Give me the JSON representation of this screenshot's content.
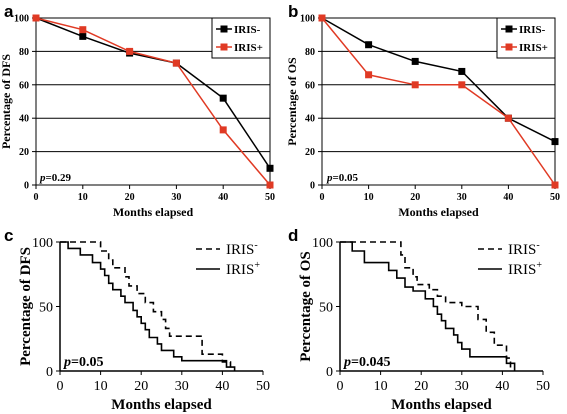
{
  "panel_letters": [
    "a",
    "b",
    "c",
    "d"
  ],
  "colors": {
    "black": "#000000",
    "red": "#e03a24"
  },
  "chart_data": [
    {
      "panel": "a",
      "type": "line",
      "ylabel": "Percentage of DFS",
      "xlabel": "Months elapsed",
      "x": [
        0,
        10,
        20,
        30,
        40,
        50
      ],
      "xlim": [
        0,
        50
      ],
      "ylim": [
        0,
        100
      ],
      "yticks": [
        0,
        20,
        40,
        60,
        80,
        100
      ],
      "grid": true,
      "legend": "top-right",
      "annotation": "p=0.29",
      "series": [
        {
          "name": "IRIS-",
          "color": "#000000",
          "marker": "square",
          "values": [
            100,
            89,
            79,
            73,
            52,
            10
          ]
        },
        {
          "name": "IRIS+",
          "color": "#e03a24",
          "marker": "square",
          "values": [
            100,
            93,
            80,
            73,
            33,
            0
          ]
        }
      ]
    },
    {
      "panel": "b",
      "type": "line",
      "ylabel": "Percentage of OS",
      "xlabel": "Months elapsed",
      "x": [
        0,
        10,
        20,
        30,
        40,
        50
      ],
      "xlim": [
        0,
        50
      ],
      "ylim": [
        0,
        100
      ],
      "yticks": [
        0,
        20,
        40,
        60,
        80,
        100
      ],
      "grid": true,
      "legend": "top-right",
      "annotation": "p=0.05",
      "series": [
        {
          "name": "IRIS-",
          "color": "#000000",
          "marker": "square",
          "values": [
            100,
            84,
            74,
            68,
            40,
            26
          ]
        },
        {
          "name": "IRIS+",
          "color": "#e03a24",
          "marker": "square",
          "values": [
            100,
            66,
            60,
            60,
            40,
            0
          ]
        }
      ]
    },
    {
      "panel": "c",
      "type": "line",
      "step": true,
      "ylabel": "Percentage of DFS",
      "xlabel": "Months elapsed",
      "xlim": [
        0,
        50
      ],
      "xticks": [
        0,
        10,
        20,
        30,
        40,
        50
      ],
      "ylim": [
        0,
        100
      ],
      "yticks": [
        0,
        50,
        100
      ],
      "grid": false,
      "legend": "top-right",
      "annotation": "p=0.05",
      "series": [
        {
          "name": "IRIS-",
          "legend_base": "IRIS",
          "legend_sup": "-",
          "dash": true,
          "points": [
            [
              0,
              100
            ],
            [
              10,
              100
            ],
            [
              10,
              93
            ],
            [
              12,
              93
            ],
            [
              12,
              86
            ],
            [
              13,
              86
            ],
            [
              13,
              80
            ],
            [
              16,
              80
            ],
            [
              16,
              73
            ],
            [
              17,
              73
            ],
            [
              17,
              66
            ],
            [
              19,
              66
            ],
            [
              19,
              60
            ],
            [
              21,
              60
            ],
            [
              21,
              53
            ],
            [
              23,
              53
            ],
            [
              23,
              46
            ],
            [
              25,
              46
            ],
            [
              25,
              40
            ],
            [
              26,
              40
            ],
            [
              26,
              33
            ],
            [
              27,
              33
            ],
            [
              27,
              27
            ],
            [
              35,
              27
            ],
            [
              35,
              13
            ],
            [
              40,
              13
            ],
            [
              40,
              7
            ],
            [
              42,
              7
            ],
            [
              42,
              0
            ]
          ]
        },
        {
          "name": "IRIS+",
          "legend_base": "IRIS",
          "legend_sup": "+",
          "dash": false,
          "points": [
            [
              0,
              100
            ],
            [
              2,
              100
            ],
            [
              2,
              95
            ],
            [
              5,
              95
            ],
            [
              5,
              90
            ],
            [
              8,
              90
            ],
            [
              8,
              84
            ],
            [
              10,
              84
            ],
            [
              10,
              79
            ],
            [
              11,
              79
            ],
            [
              11,
              74
            ],
            [
              12,
              74
            ],
            [
              12,
              68
            ],
            [
              13,
              68
            ],
            [
              13,
              63
            ],
            [
              15,
              63
            ],
            [
              15,
              58
            ],
            [
              16,
              58
            ],
            [
              16,
              53
            ],
            [
              18,
              53
            ],
            [
              18,
              47
            ],
            [
              19,
              47
            ],
            [
              19,
              42
            ],
            [
              20,
              42
            ],
            [
              20,
              37
            ],
            [
              21,
              37
            ],
            [
              21,
              32
            ],
            [
              22,
              32
            ],
            [
              22,
              26
            ],
            [
              24,
              26
            ],
            [
              24,
              21
            ],
            [
              25,
              21
            ],
            [
              25,
              16
            ],
            [
              28,
              16
            ],
            [
              28,
              11
            ],
            [
              30,
              11
            ],
            [
              30,
              8
            ],
            [
              41,
              8
            ],
            [
              41,
              3
            ],
            [
              43,
              3
            ],
            [
              43,
              0
            ]
          ]
        }
      ]
    },
    {
      "panel": "d",
      "type": "line",
      "step": true,
      "ylabel": "Percentage of OS",
      "xlabel": "Months elapsed",
      "xlim": [
        0,
        50
      ],
      "xticks": [
        0,
        10,
        20,
        30,
        40,
        50
      ],
      "ylim": [
        0,
        100
      ],
      "yticks": [
        0,
        50,
        100
      ],
      "grid": false,
      "legend": "top-right",
      "annotation": "p=0.045",
      "series": [
        {
          "name": "IRIS-",
          "legend_base": "IRIS",
          "legend_sup": "-",
          "dash": true,
          "points": [
            [
              0,
              100
            ],
            [
              15,
              100
            ],
            [
              15,
              90
            ],
            [
              16,
              90
            ],
            [
              16,
              80
            ],
            [
              18,
              80
            ],
            [
              18,
              73
            ],
            [
              19,
              73
            ],
            [
              19,
              67
            ],
            [
              22,
              67
            ],
            [
              22,
              63
            ],
            [
              24,
              63
            ],
            [
              24,
              58
            ],
            [
              26,
              58
            ],
            [
              26,
              53
            ],
            [
              30,
              53
            ],
            [
              30,
              50
            ],
            [
              34,
              50
            ],
            [
              34,
              40
            ],
            [
              36,
              40
            ],
            [
              36,
              30
            ],
            [
              38,
              30
            ],
            [
              38,
              20
            ],
            [
              41,
              20
            ],
            [
              41,
              10
            ],
            [
              42,
              10
            ],
            [
              42,
              0
            ]
          ]
        },
        {
          "name": "IRIS+",
          "legend_base": "IRIS",
          "legend_sup": "+",
          "dash": false,
          "points": [
            [
              0,
              100
            ],
            [
              3,
              100
            ],
            [
              3,
              93
            ],
            [
              6,
              93
            ],
            [
              6,
              84
            ],
            [
              12,
              84
            ],
            [
              12,
              78
            ],
            [
              14,
              78
            ],
            [
              14,
              72
            ],
            [
              16,
              72
            ],
            [
              16,
              65
            ],
            [
              18,
              65
            ],
            [
              18,
              62
            ],
            [
              21,
              62
            ],
            [
              21,
              56
            ],
            [
              23,
              56
            ],
            [
              23,
              50
            ],
            [
              24,
              50
            ],
            [
              24,
              44
            ],
            [
              25,
              44
            ],
            [
              25,
              39
            ],
            [
              26,
              39
            ],
            [
              26,
              33
            ],
            [
              28,
              33
            ],
            [
              28,
              28
            ],
            [
              29,
              28
            ],
            [
              29,
              22
            ],
            [
              30,
              22
            ],
            [
              30,
              17
            ],
            [
              32,
              17
            ],
            [
              32,
              11
            ],
            [
              41,
              11
            ],
            [
              41,
              6
            ],
            [
              43,
              6
            ],
            [
              43,
              0
            ]
          ]
        }
      ]
    }
  ]
}
